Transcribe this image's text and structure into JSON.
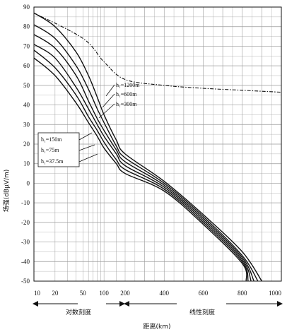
{
  "chart_data": {
    "type": "line",
    "xlabel": "距离(km)",
    "ylabel": "场强(dBμV/m)",
    "ylim": [
      -50,
      90
    ],
    "y_ticks": [
      "90",
      "80",
      "70",
      "60",
      "50",
      "40",
      "30",
      "20",
      "10",
      "0",
      "-10",
      "-20",
      "-30",
      "-40",
      "-50"
    ],
    "x_scale": "log 10–200 km, then linear 200–1000 km",
    "x_ticks": [
      "10",
      "20",
      "50",
      "100",
      "200",
      "400",
      "600",
      "800",
      "1000"
    ],
    "x_tick_values": [
      10,
      20,
      50,
      100,
      200,
      400,
      600,
      800,
      1000
    ],
    "scale_labels": {
      "log": "对数刻度",
      "linear": "线性刻度"
    },
    "grid": true,
    "legend": {
      "upper": [
        "h₁=1200m",
        "h₁=600m",
        "h₁=300m"
      ],
      "lower": [
        "h₁=150m",
        "h₁=75m",
        "h₁=37.5m"
      ]
    },
    "series": [
      {
        "name": "",
        "style": "dash-dot",
        "x": [
          10,
          50,
          100,
          200,
          400,
          600,
          800,
          1000
        ],
        "y": [
          87,
          74,
          62,
          53,
          50,
          48.5,
          47.5,
          46.5
        ]
      },
      {
        "name": "h₁=1200m",
        "x": [
          10,
          20,
          40,
          60,
          80,
          100,
          150,
          200,
          400,
          600,
          800,
          900
        ],
        "y": [
          87,
          80,
          67,
          55,
          44,
          35,
          22,
          15,
          1,
          -16,
          -35,
          -50
        ]
      },
      {
        "name": "h₁=600m",
        "x": [
          10,
          20,
          40,
          60,
          80,
          100,
          150,
          200,
          400,
          600,
          800,
          880
        ],
        "y": [
          81,
          74,
          60,
          48,
          38,
          31,
          19,
          13,
          0,
          -17,
          -37,
          -50
        ]
      },
      {
        "name": "h₁=300m",
        "x": [
          10,
          20,
          40,
          60,
          80,
          100,
          150,
          200,
          400,
          600,
          800,
          860
        ],
        "y": [
          76,
          69,
          55,
          42,
          33,
          27,
          17,
          11,
          -1,
          -18,
          -38,
          -50
        ]
      },
      {
        "name": "h₁=150m",
        "x": [
          10,
          20,
          40,
          60,
          80,
          100,
          150,
          200,
          400,
          600,
          800,
          845
        ],
        "y": [
          71,
          64,
          49,
          38,
          30,
          24,
          15,
          9,
          -2,
          -19,
          -39,
          -50
        ]
      },
      {
        "name": "h₁=75m",
        "x": [
          10,
          20,
          40,
          60,
          80,
          100,
          150,
          200,
          400,
          600,
          800,
          830
        ],
        "y": [
          68,
          59,
          45,
          34,
          27,
          21,
          12,
          7,
          -3,
          -20,
          -40,
          -50
        ]
      },
      {
        "name": "h₁=37.5m",
        "x": [
          10,
          20,
          40,
          60,
          80,
          100,
          150,
          200,
          400,
          600,
          800,
          820
        ],
        "y": [
          64,
          55,
          41,
          31,
          24,
          18,
          10,
          5,
          -4,
          -21,
          -41,
          -50
        ]
      }
    ]
  }
}
